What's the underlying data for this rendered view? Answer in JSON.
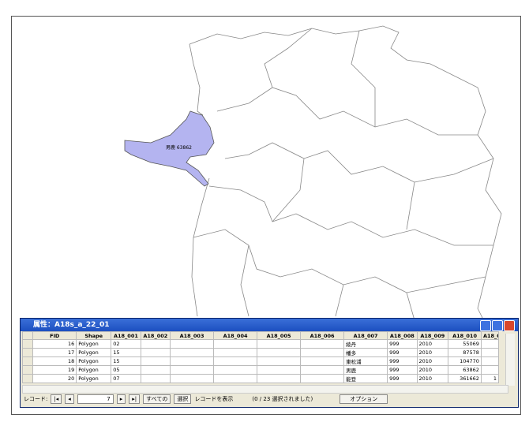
{
  "map": {
    "label": "男鹿  63862"
  },
  "window": {
    "title": "属性：A18s_a_22_01",
    "columns": [
      "FID",
      "Shape",
      "A18_001",
      "A18_002",
      "A18_003",
      "A18_004",
      "A18_005",
      "A18_006",
      "A18_007",
      "A18_008",
      "A18_009",
      "A18_010",
      "A18_0"
    ],
    "rows": [
      [
        16,
        "Polygon",
        "02",
        null,
        null,
        null,
        null,
        null,
        "綾丹",
        999,
        2010,
        55069,
        null
      ],
      [
        17,
        "Polygon",
        "15",
        null,
        null,
        null,
        null,
        null,
        "幡多",
        999,
        2010,
        87578,
        null
      ],
      [
        18,
        "Polygon",
        "15",
        null,
        null,
        null,
        null,
        null,
        "東松浦",
        999,
        2010,
        104770,
        null
      ],
      [
        19,
        "Polygon",
        "05",
        null,
        null,
        null,
        null,
        null,
        "男鹿",
        999,
        2010,
        63862,
        null
      ],
      [
        20,
        "Polygon",
        "07",
        null,
        null,
        null,
        null,
        null,
        "能登",
        999,
        2010,
        361662,
        1
      ]
    ],
    "record_label": "レコード:",
    "record_number": 7,
    "show_all": "すべての",
    "selected": "選択",
    "show_records": "レコードを表示",
    "selection_status": "(0 / 23 選択されました)",
    "options": "オプション"
  }
}
